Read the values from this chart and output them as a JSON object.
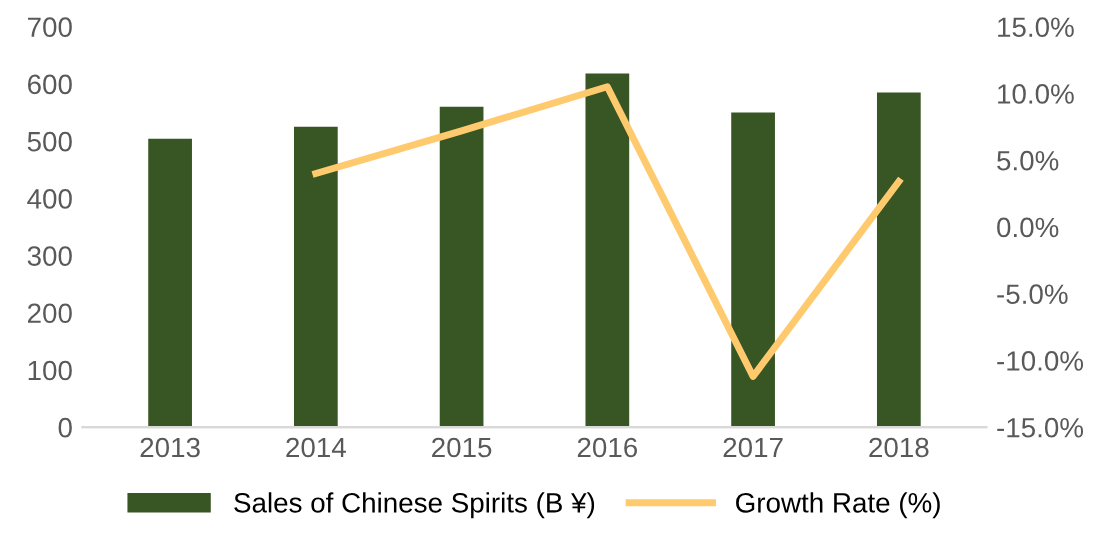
{
  "chart_data": {
    "type": "bar",
    "categories": [
      "2013",
      "2014",
      "2015",
      "2016",
      "2017",
      "2018"
    ],
    "series": [
      {
        "name": "Sales of Chinese Spirits (B ¥)",
        "color": "#375623",
        "values": [
          504,
          525,
          560,
          618,
          550,
          585
        ]
      },
      {
        "name": "Growth Rate (%)",
        "type": "line",
        "axis": "y2",
        "color": "#ffc96e",
        "values": [
          null,
          4.0,
          7.2,
          10.5,
          -11.2,
          3.4
        ]
      }
    ],
    "ylim": [
      0,
      700
    ],
    "yticks": [
      0,
      100,
      200,
      300,
      400,
      500,
      600,
      700
    ],
    "y2lim": [
      -15,
      15
    ],
    "y2ticks": [
      {
        "value": -15,
        "label": "-15.0%"
      },
      {
        "value": -10,
        "label": "-10.0%"
      },
      {
        "value": -5,
        "label": "-5.0%"
      },
      {
        "value": 0,
        "label": "0.0%"
      },
      {
        "value": 5,
        "label": "5.0%"
      },
      {
        "value": 10,
        "label": "10.0%"
      },
      {
        "value": 15,
        "label": "15.0%"
      }
    ],
    "grid": false,
    "legend": "bottom",
    "marker": "none"
  }
}
